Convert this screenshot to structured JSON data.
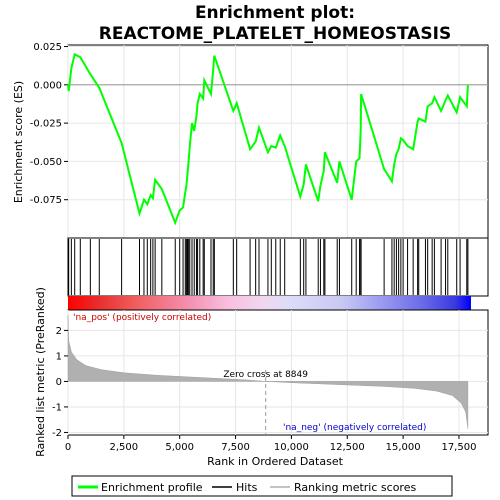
{
  "title_line1": "Enrichment plot:",
  "title_line2": "REACTOME_PLATELET_HOMEOSTASIS",
  "colors": {
    "enrichment_line": "#00ff00",
    "hits": "#000000",
    "metric_fill": "#b0b0b0",
    "pos_label": "#cc0000",
    "neg_label": "#0000cc",
    "zero_cross_line": "#999999"
  },
  "chart_data": {
    "type": "line",
    "panels": [
      {
        "name": "enrichment",
        "ylabel": "Enrichment score (ES)",
        "ylim": [
          -0.1,
          0.026
        ],
        "yticks": [
          0.025,
          0.0,
          -0.025,
          -0.05,
          -0.075
        ],
        "ytick_labels": [
          "0.025",
          "0.000",
          "-0.025",
          "-0.050",
          "-0.075"
        ]
      },
      {
        "name": "ranked_metric",
        "ylabel": "Ranked list metric (PreRanked)",
        "ylim": [
          -2.1,
          2.8
        ],
        "yticks": [
          2,
          1,
          0,
          -1,
          -2
        ],
        "ytick_labels": [
          "2",
          "1",
          "0",
          "-1",
          "-2"
        ]
      }
    ],
    "xlabel": "Rank in Ordered Dataset",
    "xlim": [
      0,
      18800
    ],
    "xticks": [
      0,
      2500,
      5000,
      7500,
      10000,
      12500,
      15000,
      17500
    ],
    "xtick_labels": [
      "0",
      "2,500",
      "5,000",
      "7,500",
      "10,000",
      "12,500",
      "15,000",
      "17,500"
    ],
    "n_genes": 17900,
    "zero_cross_rank": 8849,
    "zero_cross_label": "Zero cross at 8849",
    "pos_label": "'na_pos' (positively correlated)",
    "neg_label": "'na_neg' (negatively correlated)",
    "hits": [
      30,
      150,
      300,
      550,
      1000,
      1400,
      2400,
      3200,
      3400,
      3550,
      3700,
      3800,
      3900,
      4200,
      4800,
      5000,
      5150,
      5250,
      5300,
      5350,
      5400,
      5450,
      5550,
      5650,
      5750,
      5800,
      5900,
      6050,
      6100,
      6400,
      6500,
      6550,
      7400,
      7550,
      8150,
      8400,
      8550,
      8950,
      9100,
      9300,
      9500,
      9700,
      10400,
      10550,
      10650,
      11200,
      11300,
      11450,
      11500,
      12050,
      12150,
      12700,
      12900,
      13050,
      13100,
      13120,
      14150,
      14500,
      14600,
      14700,
      14800,
      14900,
      15000,
      15200,
      15450,
      15650,
      15700,
      16000,
      16100,
      16300,
      16400,
      16700,
      16900,
      17000,
      17400,
      17550,
      17850,
      17900
    ],
    "es_profile": [
      [
        0,
        0.0
      ],
      [
        30,
        -0.004
      ],
      [
        150,
        0.011
      ],
      [
        300,
        0.02
      ],
      [
        550,
        0.018
      ],
      [
        1000,
        0.007
      ],
      [
        1400,
        -0.002
      ],
      [
        2400,
        -0.038
      ],
      [
        3200,
        -0.084
      ],
      [
        3400,
        -0.075
      ],
      [
        3550,
        -0.078
      ],
      [
        3700,
        -0.072
      ],
      [
        3800,
        -0.074
      ],
      [
        3900,
        -0.062
      ],
      [
        4200,
        -0.068
      ],
      [
        4800,
        -0.09
      ],
      [
        5000,
        -0.082
      ],
      [
        5150,
        -0.08
      ],
      [
        5250,
        -0.07
      ],
      [
        5300,
        -0.066
      ],
      [
        5350,
        -0.058
      ],
      [
        5400,
        -0.05
      ],
      [
        5450,
        -0.04
      ],
      [
        5550,
        -0.025
      ],
      [
        5650,
        -0.03
      ],
      [
        5750,
        -0.02
      ],
      [
        5800,
        -0.012
      ],
      [
        5900,
        -0.006
      ],
      [
        6050,
        -0.009
      ],
      [
        6100,
        0.003
      ],
      [
        6400,
        -0.006
      ],
      [
        6500,
        0.01
      ],
      [
        6550,
        0.019
      ],
      [
        7400,
        -0.017
      ],
      [
        7550,
        -0.012
      ],
      [
        8150,
        -0.042
      ],
      [
        8400,
        -0.037
      ],
      [
        8550,
        -0.028
      ],
      [
        8950,
        -0.044
      ],
      [
        9100,
        -0.04
      ],
      [
        9300,
        -0.041
      ],
      [
        9500,
        -0.033
      ],
      [
        9700,
        -0.04
      ],
      [
        10400,
        -0.073
      ],
      [
        10550,
        -0.065
      ],
      [
        10650,
        -0.052
      ],
      [
        11200,
        -0.076
      ],
      [
        11300,
        -0.066
      ],
      [
        11450,
        -0.056
      ],
      [
        11500,
        -0.044
      ],
      [
        12050,
        -0.064
      ],
      [
        12150,
        -0.05
      ],
      [
        12700,
        -0.075
      ],
      [
        12900,
        -0.05
      ],
      [
        13050,
        -0.048
      ],
      [
        13100,
        -0.03
      ],
      [
        13120,
        -0.006
      ],
      [
        14150,
        -0.055
      ],
      [
        14500,
        -0.063
      ],
      [
        14600,
        -0.052
      ],
      [
        14700,
        -0.045
      ],
      [
        14800,
        -0.042
      ],
      [
        14900,
        -0.035
      ],
      [
        15000,
        -0.036
      ],
      [
        15200,
        -0.04
      ],
      [
        15450,
        -0.042
      ],
      [
        15650,
        -0.024
      ],
      [
        15700,
        -0.022
      ],
      [
        16000,
        -0.024
      ],
      [
        16100,
        -0.014
      ],
      [
        16300,
        -0.012
      ],
      [
        16400,
        -0.008
      ],
      [
        16700,
        -0.017
      ],
      [
        16900,
        -0.01
      ],
      [
        17000,
        -0.007
      ],
      [
        17400,
        -0.018
      ],
      [
        17550,
        -0.008
      ],
      [
        17850,
        -0.014
      ],
      [
        17900,
        0.0
      ]
    ],
    "metric_profile": [
      [
        0,
        2.6
      ],
      [
        30,
        1.6
      ],
      [
        150,
        1.15
      ],
      [
        400,
        0.85
      ],
      [
        800,
        0.62
      ],
      [
        1500,
        0.46
      ],
      [
        2500,
        0.34
      ],
      [
        4000,
        0.24
      ],
      [
        6000,
        0.15
      ],
      [
        8000,
        0.06
      ],
      [
        8849,
        0.0
      ],
      [
        10000,
        -0.05
      ],
      [
        12000,
        -0.12
      ],
      [
        14000,
        -0.19
      ],
      [
        15500,
        -0.27
      ],
      [
        16500,
        -0.38
      ],
      [
        17200,
        -0.55
      ],
      [
        17600,
        -0.85
      ],
      [
        17800,
        -1.2
      ],
      [
        17900,
        -1.85
      ]
    ],
    "heatbar_stops": [
      [
        0.0,
        "#ff0000"
      ],
      [
        0.08,
        "#e83030"
      ],
      [
        0.16,
        "#f05a5a"
      ],
      [
        0.3,
        "#f490b0"
      ],
      [
        0.4,
        "#f8c0e0"
      ],
      [
        0.49,
        "#f0d8f0"
      ],
      [
        0.55,
        "#dcdcf8"
      ],
      [
        0.68,
        "#c8c8f4"
      ],
      [
        0.78,
        "#9a9af0"
      ],
      [
        0.88,
        "#6a6ae8"
      ],
      [
        0.96,
        "#3a3ae0"
      ],
      [
        1.0,
        "#0000ff"
      ]
    ],
    "legend": [
      "Enrichment profile",
      "Hits",
      "Ranking metric scores"
    ],
    "legend_placement": "bottom"
  }
}
